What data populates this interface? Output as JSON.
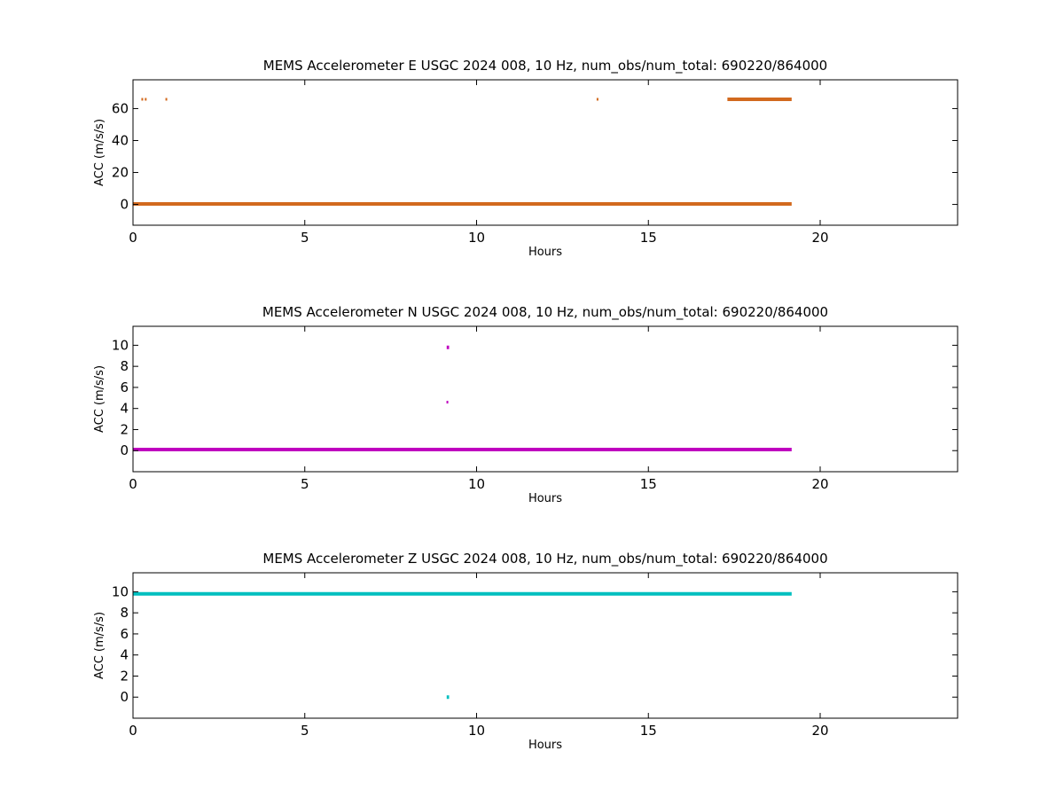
{
  "chart_data": [
    {
      "type": "scatter",
      "title": "MEMS Accelerometer E USGC 2024 008, 10 Hz, num_obs/num_total: 690220/864000",
      "xlabel": "Hours",
      "ylabel": "ACC (m/s/s)",
      "xlim": [
        0,
        24
      ],
      "ylim": [
        -13,
        78
      ],
      "xticks": [
        0,
        5,
        10,
        15,
        20
      ],
      "yticks": [
        0,
        20,
        40,
        60
      ],
      "grid": false,
      "color": "#d2691e",
      "series": [
        {
          "segments": [
            {
              "x": [
                0,
                19.17
              ],
              "y": 0.3
            },
            {
              "x": [
                17.3,
                19.17
              ],
              "y": 65.8
            }
          ],
          "points": [
            {
              "x": 0.27,
              "y": 65.8
            },
            {
              "x": 0.37,
              "y": 65.8
            },
            {
              "x": 0.97,
              "y": 65.8
            },
            {
              "x": 13.52,
              "y": 65.8
            }
          ]
        }
      ]
    },
    {
      "type": "scatter",
      "title": "MEMS Accelerometer N USGC 2024 008, 10 Hz, num_obs/num_total: 690220/864000",
      "xlabel": "Hours",
      "ylabel": "ACC (m/s/s)",
      "xlim": [
        0,
        24
      ],
      "ylim": [
        -2,
        11.8
      ],
      "xticks": [
        0,
        5,
        10,
        15,
        20
      ],
      "yticks": [
        0,
        2,
        4,
        6,
        8,
        10
      ],
      "grid": false,
      "color": "#bf00bf",
      "series": [
        {
          "segments": [
            {
              "x": [
                0,
                19.17
              ],
              "y": 0.1
            },
            {
              "x": [
                9.13,
                9.2
              ],
              "y": 9.8
            }
          ],
          "points": [
            {
              "x": 9.15,
              "y": 4.6
            }
          ]
        }
      ]
    },
    {
      "type": "scatter",
      "title": "MEMS Accelerometer Z USGC 2024 008, 10 Hz, num_obs/num_total: 690220/864000",
      "xlabel": "Hours",
      "ylabel": "ACC (m/s/s)",
      "xlim": [
        0,
        24
      ],
      "ylim": [
        -2,
        11.8
      ],
      "xticks": [
        0,
        5,
        10,
        15,
        20
      ],
      "yticks": [
        0,
        2,
        4,
        6,
        8,
        10
      ],
      "grid": false,
      "color": "#00bfbf",
      "series": [
        {
          "segments": [
            {
              "x": [
                0,
                19.17
              ],
              "y": 9.8
            },
            {
              "x": [
                9.13,
                9.2
              ],
              "y": 0.0
            }
          ],
          "points": []
        }
      ]
    }
  ]
}
